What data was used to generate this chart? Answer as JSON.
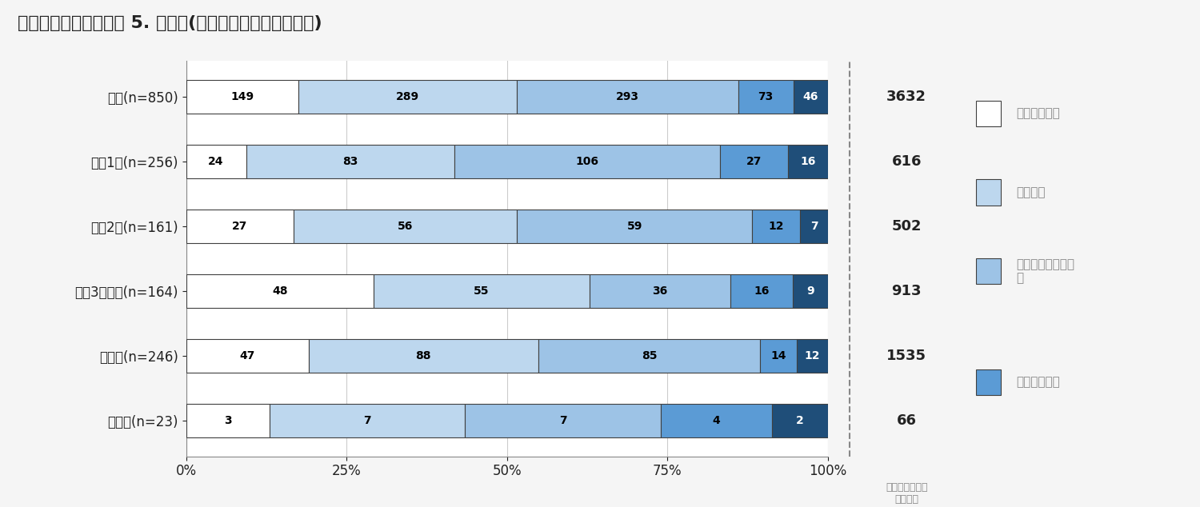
{
  "title": "《授業方法別の評価》 5. その他(ライブと録画の混成など)",
  "categories": [
    "全体(n=850)",
    "学部1年(n=256)",
    "学部2年(n=161)",
    "学部3年以上(n=164)",
    "大学院(n=246)",
    "その他(n=23)"
  ],
  "segments": {
    "s1": [
      149,
      24,
      27,
      48,
      47,
      3
    ],
    "s2": [
      289,
      83,
      56,
      55,
      88,
      7
    ],
    "s3": [
      293,
      106,
      59,
      36,
      85,
      7
    ],
    "s4": [
      73,
      27,
      12,
      16,
      14,
      4
    ],
    "s5": [
      46,
      16,
      7,
      9,
      12,
      2
    ]
  },
  "totals": [
    3632,
    616,
    502,
    913,
    1535,
    66
  ],
  "colors": [
    "#ffffff",
    "#bdd7ee",
    "#9dc3e6",
    "#5b9bd5",
    "#1f4e79"
  ],
  "seg_edge_color": "#404040",
  "right_bg": "#eeeeee",
  "main_bg": "#ffffff",
  "fig_bg": "#f5f5f5",
  "right_label": "この形式の講義\nを未受講",
  "legend_items": [
    [
      "大変良かった",
      "#ffffff"
    ],
    [
      "良かった",
      "#bdd7ee"
    ],
    [
      "どちらともいえない",
      "#9dc3e6"
    ],
    [
      "良くなかった",
      "#5b9bd5"
    ]
  ],
  "dashed_line_color": "#888888",
  "grid_color": "#cccccc",
  "spine_color": "#888888",
  "text_color_dark": "#222222",
  "text_color_grey": "#888888"
}
